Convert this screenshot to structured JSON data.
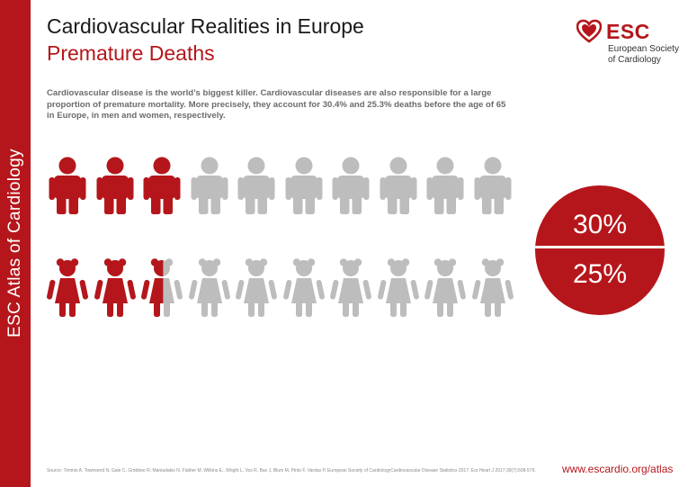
{
  "sidebar": {
    "label": "ESC Atlas of Cardiology"
  },
  "header": {
    "title": "Cardiovascular Realities in Europe",
    "subtitle": "Premature Deaths"
  },
  "logo": {
    "abbr": "ESC",
    "name": "European Society of Cardiology"
  },
  "intro": "Cardiovascular disease is the world’s biggest killer. Cardiovascular diseases are also responsible for a large proportion of premature mortality. More precisely, they account for 30.4% and 25.3% deaths before the age of 65 in Europe, in men and women, respectively.",
  "infographic": {
    "men_filled_fraction": 0.304,
    "women_filled_fraction": 0.253,
    "figures_per_row": 10,
    "men_percent_label": "30%",
    "women_percent_label": "25%"
  },
  "colors": {
    "accent": "#b5161b",
    "grey": "#bdbdbd",
    "white": "#ffffff"
  },
  "icons": {
    "men": "man-icon",
    "women": "woman-icon",
    "logo": "heart-logo-icon"
  },
  "footer": {
    "source": "Source: Timmis A, Townsend N, Gale C, Grobbee R, Maniadakis N, Flather M, Wilkins E., Wright L, Vos R, Bax J, Blum M, Pinto F, Vardas P. European Society of CardiologyCardiovascular Disease Statistics 2017. Eur Heart J 2017;39(7):508-579.",
    "url": "www.escardio.org/atlas"
  }
}
